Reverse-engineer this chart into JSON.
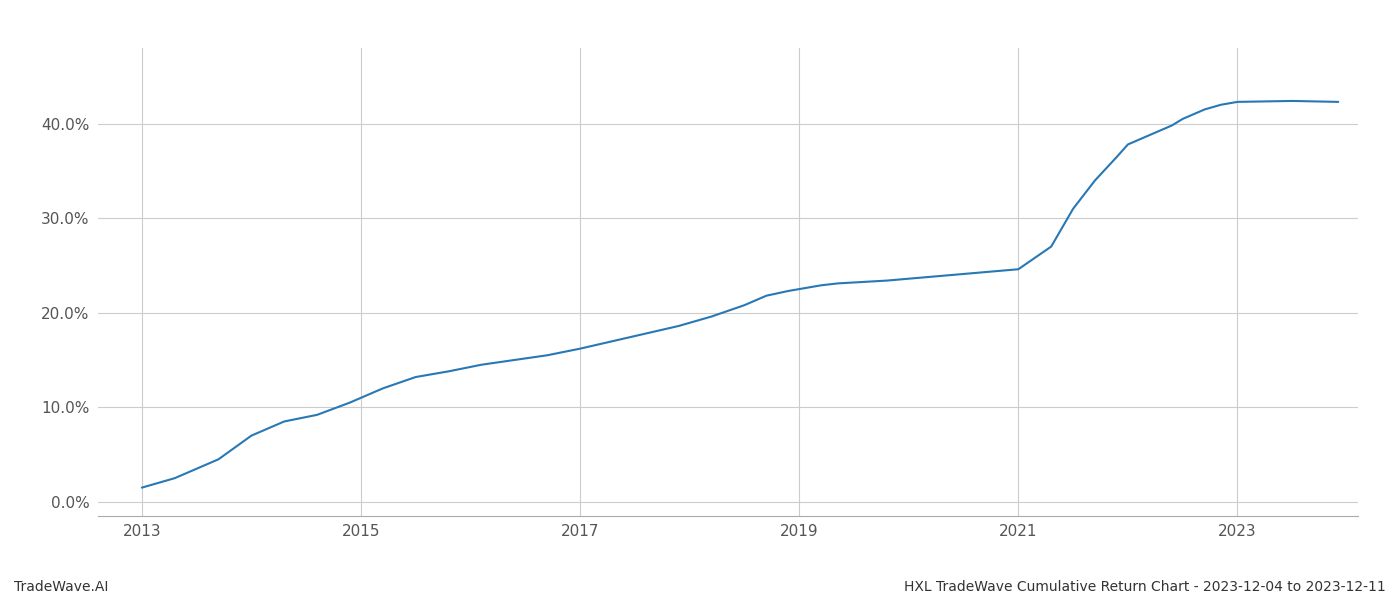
{
  "title": "HXL TradeWave Cumulative Return Chart - 2023-12-04 to 2023-12-11",
  "watermark": "TradeWave.AI",
  "line_color": "#2878b5",
  "background_color": "#ffffff",
  "grid_color": "#cccccc",
  "x_years": [
    2013.0,
    2013.3,
    2013.7,
    2014.0,
    2014.3,
    2014.6,
    2014.9,
    2015.2,
    2015.5,
    2015.8,
    2016.1,
    2016.4,
    2016.7,
    2017.0,
    2017.3,
    2017.6,
    2017.9,
    2018.2,
    2018.5,
    2018.7,
    2018.9,
    2019.0,
    2019.1,
    2019.2,
    2019.35,
    2019.5,
    2019.65,
    2019.8,
    2020.0,
    2020.2,
    2020.4,
    2020.6,
    2020.8,
    2021.0,
    2021.15,
    2021.3,
    2021.5,
    2021.7,
    2021.9,
    2022.0,
    2022.2,
    2022.4,
    2022.5,
    2022.7,
    2022.85,
    2023.0,
    2023.5,
    2023.92
  ],
  "y_values": [
    0.015,
    0.025,
    0.045,
    0.07,
    0.085,
    0.092,
    0.105,
    0.12,
    0.132,
    0.138,
    0.145,
    0.15,
    0.155,
    0.162,
    0.17,
    0.178,
    0.186,
    0.196,
    0.208,
    0.218,
    0.223,
    0.225,
    0.227,
    0.229,
    0.231,
    0.232,
    0.233,
    0.234,
    0.236,
    0.238,
    0.24,
    0.242,
    0.244,
    0.246,
    0.258,
    0.27,
    0.31,
    0.34,
    0.365,
    0.378,
    0.388,
    0.398,
    0.405,
    0.415,
    0.42,
    0.423,
    0.424,
    0.423
  ],
  "x_ticks": [
    2013,
    2015,
    2017,
    2019,
    2021,
    2023
  ],
  "y_ticks": [
    0.0,
    0.1,
    0.2,
    0.3,
    0.4
  ],
  "y_tick_labels": [
    "0.0%",
    "10.0%",
    "20.0%",
    "30.0%",
    "40.0%"
  ],
  "xlim": [
    2012.6,
    2024.1
  ],
  "ylim": [
    -0.015,
    0.48
  ]
}
